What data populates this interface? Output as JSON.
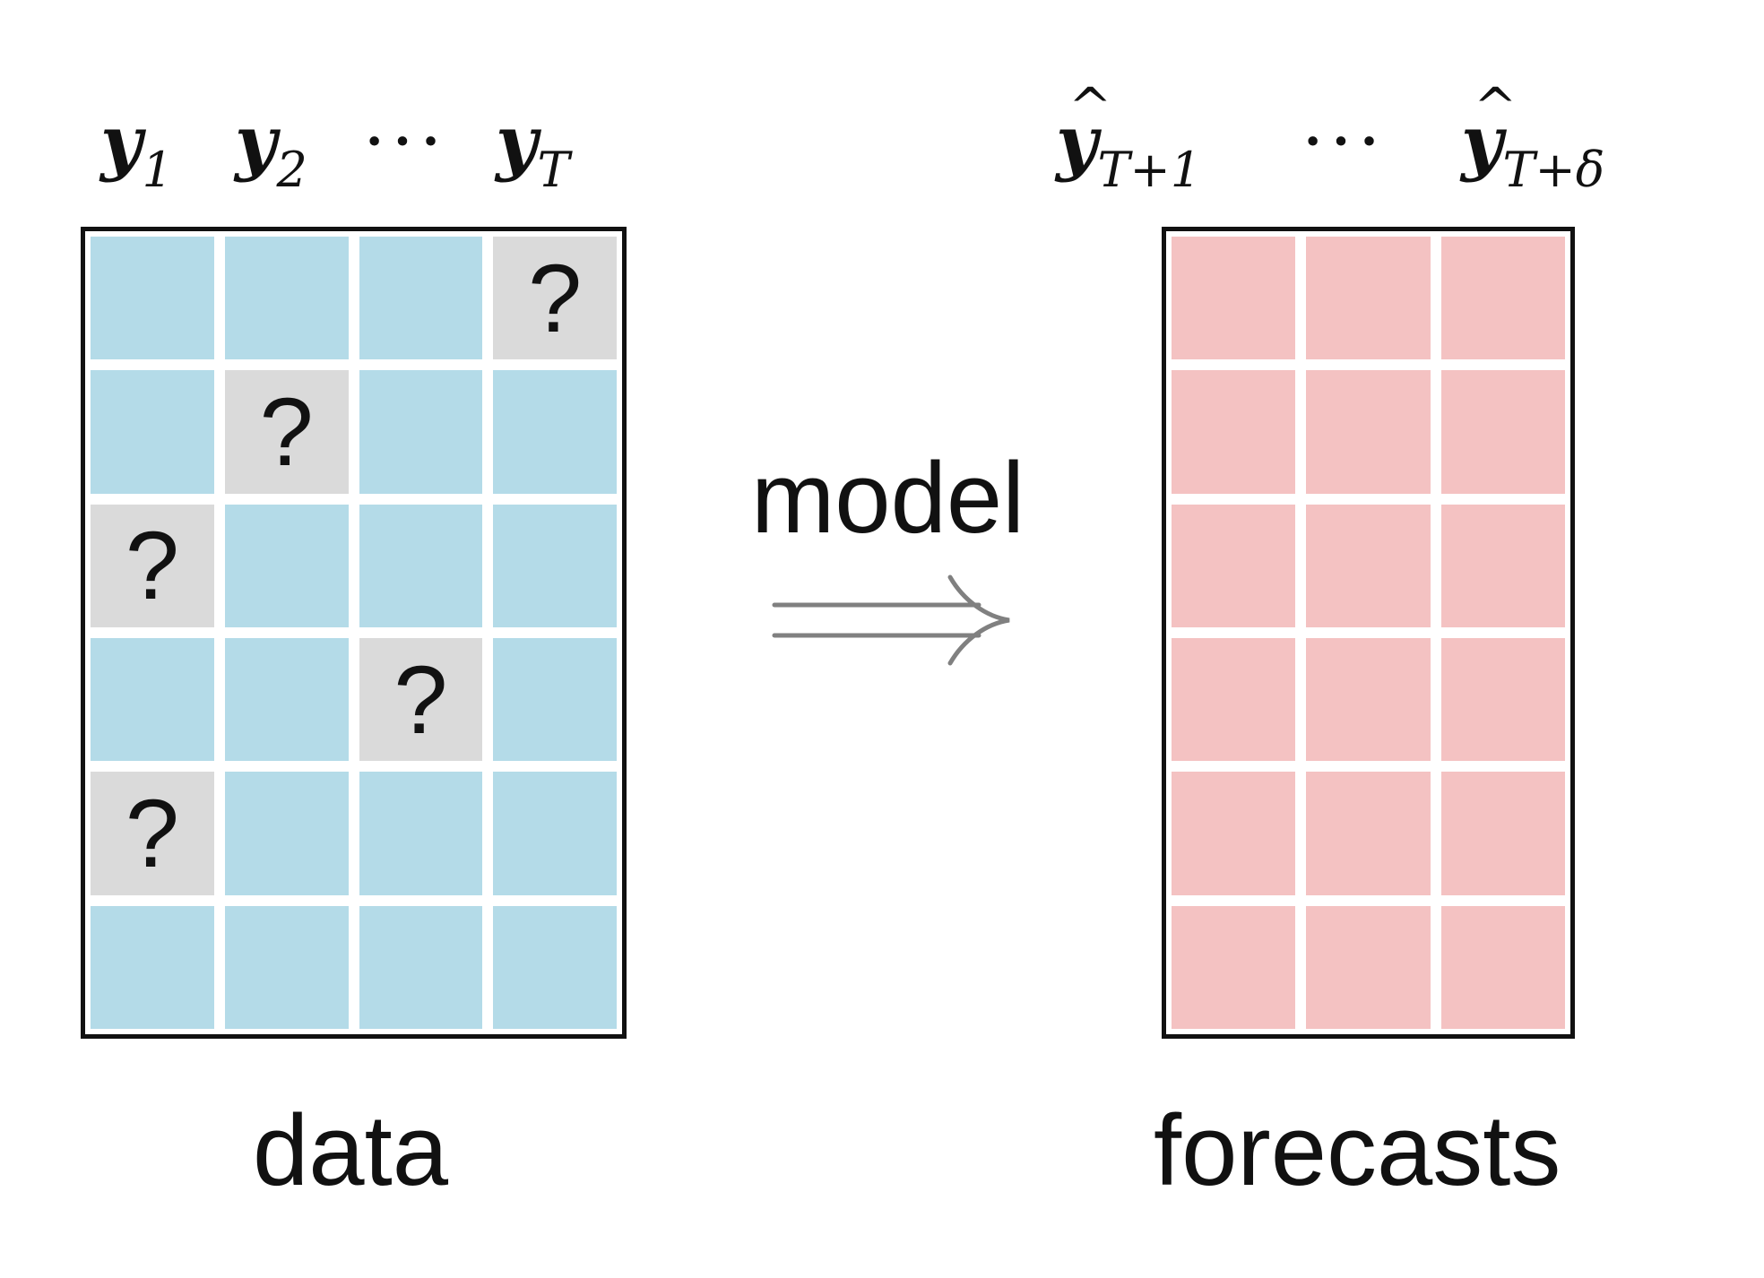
{
  "data_matrix": {
    "header": {
      "y1": "y",
      "y1_sub": "1",
      "y2": "y",
      "y2_sub": "2",
      "dots": "···",
      "yT": "y",
      "yT_sub": "T"
    },
    "caption": "data",
    "cells": [
      [
        "",
        "",
        "",
        "?"
      ],
      [
        "",
        "?",
        "",
        ""
      ],
      [
        "?",
        "",
        "",
        ""
      ],
      [
        "",
        "",
        "?",
        ""
      ],
      [
        "?",
        "",
        "",
        ""
      ],
      [
        "",
        "",
        "",
        ""
      ]
    ],
    "colors": {
      "observed": "#b4dbe8",
      "missing": "#dadada"
    }
  },
  "arrow": {
    "label": "model",
    "color": "#808080",
    "icon": "implies-arrow-icon"
  },
  "forecast_matrix": {
    "header": {
      "yhat1": "y",
      "yhat1_sub": "T+1",
      "dots": "···",
      "yhatd": "y",
      "yhatd_sub": "T+δ"
    },
    "caption": "forecasts",
    "rows": 6,
    "cols": 3,
    "color": "#f4c2c2"
  }
}
